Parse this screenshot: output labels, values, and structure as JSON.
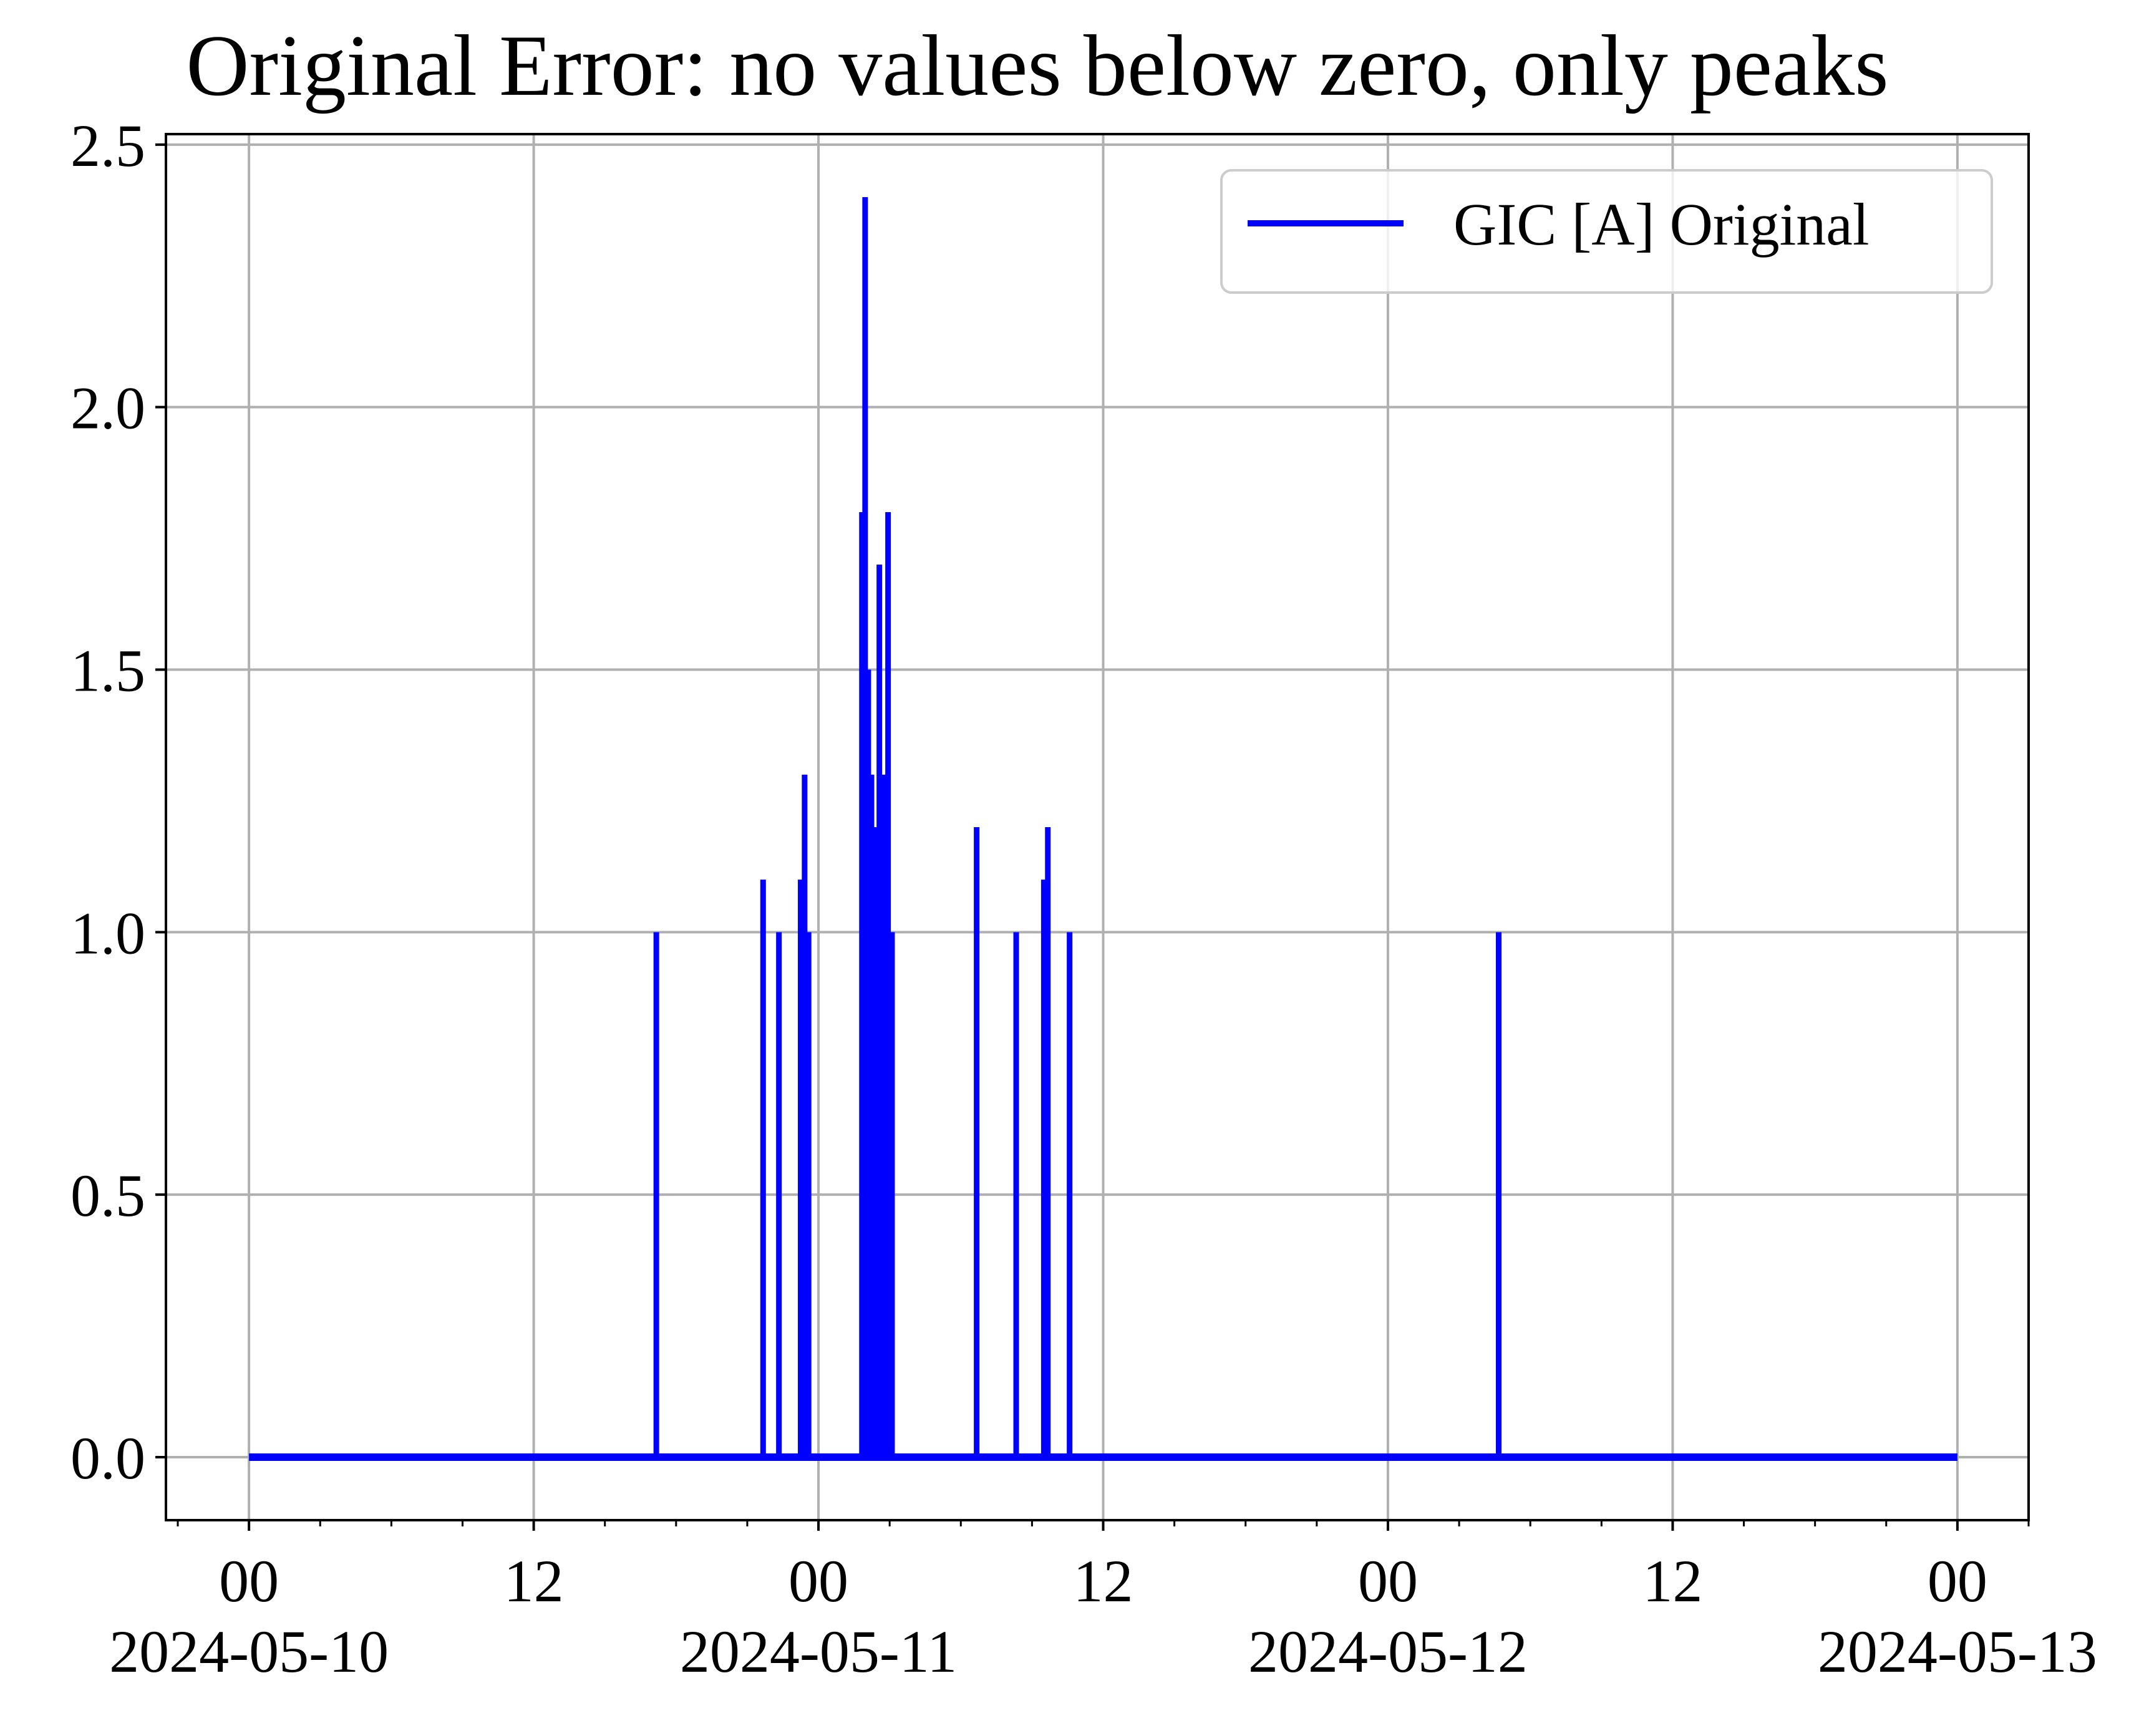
{
  "chart_data": {
    "type": "line",
    "title": "Original Error: no values below zero, only peaks",
    "xlabel": "",
    "ylabel": "",
    "xlim": [
      "2024-05-09T20:30",
      "2024-05-13T03:00"
    ],
    "ylim": [
      -0.12,
      2.52
    ],
    "grid": true,
    "legend_position": "top-right",
    "x_ticks": [
      {
        "value": "2024-05-10T00:00",
        "label": "00",
        "date": "2024-05-10"
      },
      {
        "value": "2024-05-10T12:00",
        "label": "12",
        "date": ""
      },
      {
        "value": "2024-05-11T00:00",
        "label": "00",
        "date": "2024-05-11"
      },
      {
        "value": "2024-05-11T12:00",
        "label": "12",
        "date": ""
      },
      {
        "value": "2024-05-12T00:00",
        "label": "00",
        "date": "2024-05-12"
      },
      {
        "value": "2024-05-12T12:00",
        "label": "12",
        "date": ""
      },
      {
        "value": "2024-05-13T00:00",
        "label": "00",
        "date": "2024-05-13"
      }
    ],
    "y_ticks": [
      {
        "value": 0.0,
        "label": "0.0"
      },
      {
        "value": 0.5,
        "label": "0.5"
      },
      {
        "value": 1.0,
        "label": "1.0"
      },
      {
        "value": 1.5,
        "label": "1.5"
      },
      {
        "value": 2.0,
        "label": "2.0"
      },
      {
        "value": 2.5,
        "label": "2.5"
      }
    ],
    "minor_tick_hours": 3,
    "series": [
      {
        "name": "GIC [A] Original",
        "color": "#0000ff",
        "baseline": 0.0,
        "x_start": "2024-05-10T00:00",
        "x_end": "2024-05-13T00:00",
        "peaks": [
          {
            "x": "2024-05-10T17:10",
            "y": 1.0
          },
          {
            "x": "2024-05-10T21:40",
            "y": 1.1
          },
          {
            "x": "2024-05-10T22:20",
            "y": 1.0
          },
          {
            "x": "2024-05-10T23:15",
            "y": 1.1
          },
          {
            "x": "2024-05-10T23:25",
            "y": 1.3
          },
          {
            "x": "2024-05-10T23:35",
            "y": 1.0
          },
          {
            "x": "2024-05-11T01:50",
            "y": 1.8
          },
          {
            "x": "2024-05-11T01:58",
            "y": 2.4
          },
          {
            "x": "2024-05-11T02:06",
            "y": 1.5
          },
          {
            "x": "2024-05-11T02:14",
            "y": 1.3
          },
          {
            "x": "2024-05-11T02:24",
            "y": 1.2
          },
          {
            "x": "2024-05-11T02:34",
            "y": 1.7
          },
          {
            "x": "2024-05-11T02:44",
            "y": 1.3
          },
          {
            "x": "2024-05-11T02:56",
            "y": 1.8
          },
          {
            "x": "2024-05-11T03:06",
            "y": 1.0
          },
          {
            "x": "2024-05-11T06:40",
            "y": 1.2
          },
          {
            "x": "2024-05-11T08:20",
            "y": 1.0
          },
          {
            "x": "2024-05-11T09:30",
            "y": 1.1
          },
          {
            "x": "2024-05-11T09:40",
            "y": 1.2
          },
          {
            "x": "2024-05-11T10:35",
            "y": 1.0
          },
          {
            "x": "2024-05-12T04:40",
            "y": 1.0
          }
        ]
      }
    ]
  }
}
